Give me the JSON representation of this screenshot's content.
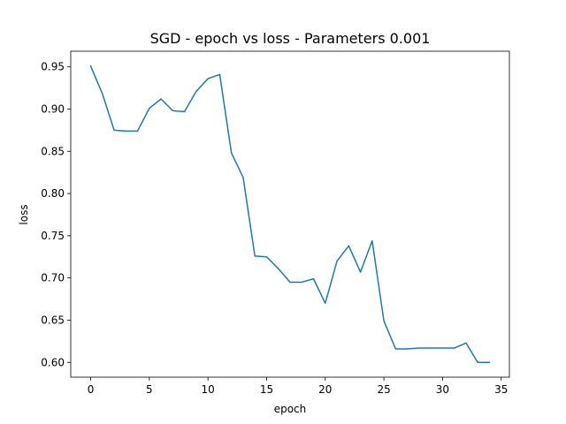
{
  "chart_data": {
    "type": "line",
    "title": "SGD - epoch vs loss - Parameters 0.001",
    "xlabel": "epoch",
    "ylabel": "loss",
    "xlim": [
      -1.7,
      35.7
    ],
    "ylim": [
      0.5825,
      0.9685
    ],
    "xticks": [
      0,
      5,
      10,
      15,
      20,
      25,
      30,
      35
    ],
    "yticks": [
      0.6,
      0.65,
      0.7,
      0.75,
      0.8,
      0.85,
      0.9,
      0.95
    ],
    "xtick_labels": [
      "0",
      "5",
      "10",
      "15",
      "20",
      "25",
      "30",
      "35"
    ],
    "ytick_labels": [
      "0.60",
      "0.65",
      "0.70",
      "0.75",
      "0.80",
      "0.85",
      "0.90",
      "0.95"
    ],
    "grid": false,
    "series": [
      {
        "color": "#1f77b4",
        "x": [
          0,
          1,
          2,
          3,
          4,
          5,
          6,
          7,
          8,
          9,
          10,
          11,
          12,
          13,
          14,
          15,
          16,
          17,
          18,
          19,
          20,
          21,
          22,
          23,
          24,
          25,
          26,
          27,
          28,
          29,
          30,
          31,
          32,
          33,
          34
        ],
        "y": [
          0.951,
          0.918,
          0.875,
          0.874,
          0.874,
          0.901,
          0.912,
          0.898,
          0.897,
          0.921,
          0.936,
          0.941,
          0.848,
          0.819,
          0.726,
          0.725,
          0.711,
          0.695,
          0.695,
          0.699,
          0.67,
          0.72,
          0.738,
          0.707,
          0.744,
          0.649,
          0.616,
          0.616,
          0.617,
          0.617,
          0.617,
          0.617,
          0.623,
          0.6,
          0.6
        ]
      }
    ]
  }
}
